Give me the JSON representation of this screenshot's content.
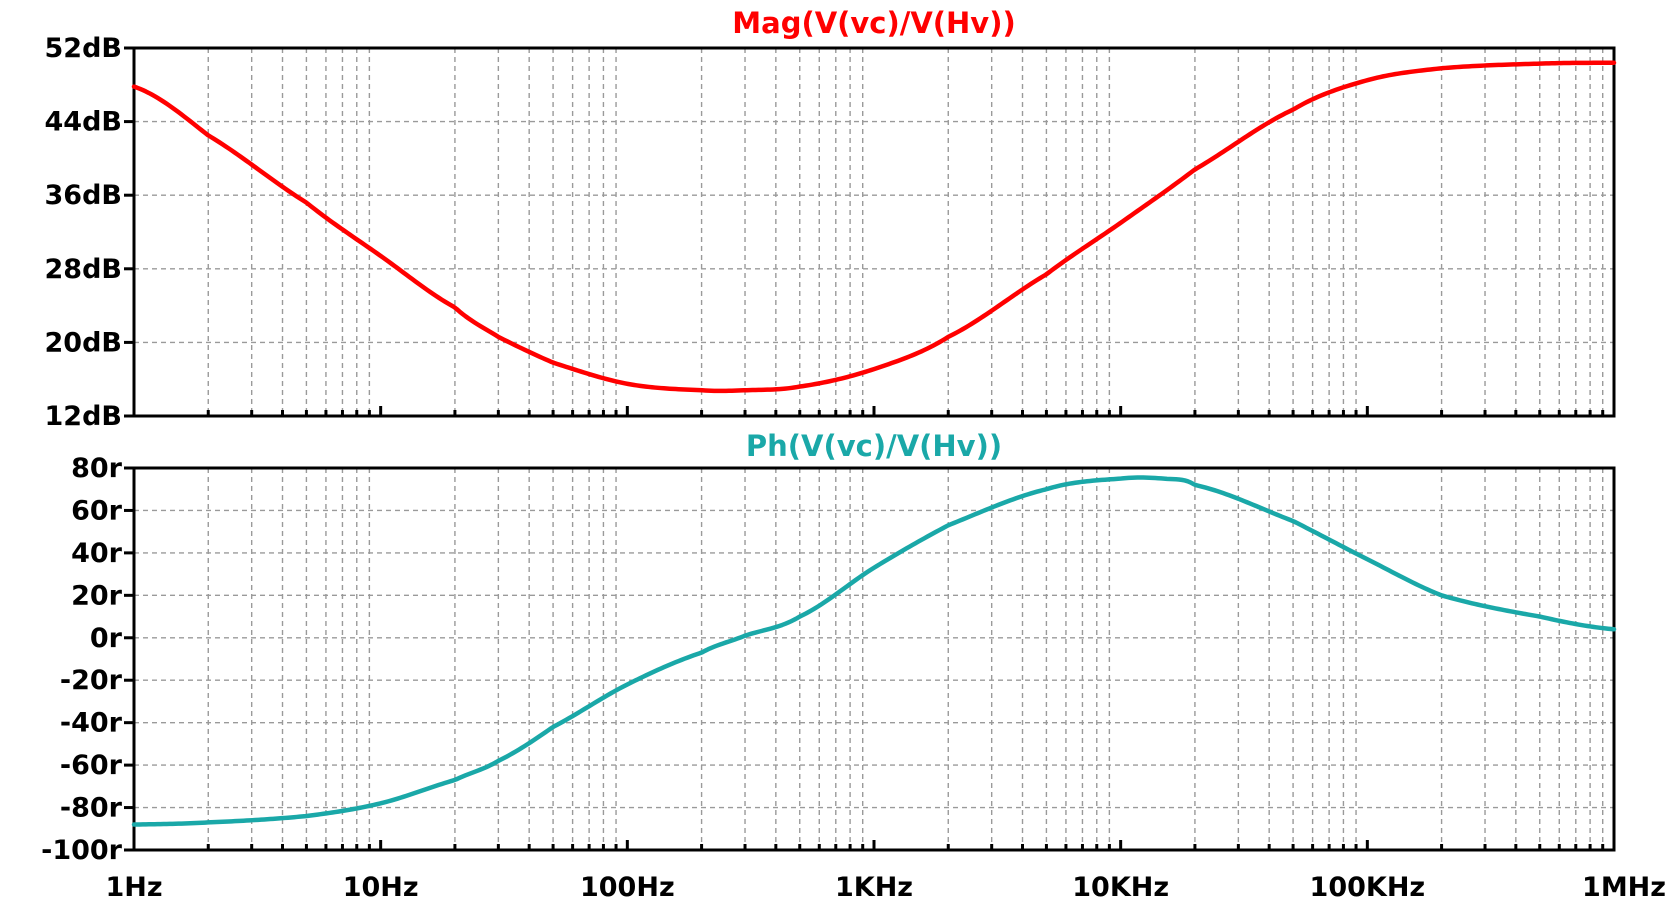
{
  "chart_data": [
    {
      "type": "line",
      "title": "Mag(V(vc)/V(Hv))",
      "color": "#ff0000",
      "x_scale": "log",
      "xlim_hz": [
        1,
        1000000
      ],
      "ylim": [
        12,
        52
      ],
      "yticks": [
        12,
        20,
        28,
        36,
        44,
        52
      ],
      "ytick_labels": [
        "12dB",
        "20dB",
        "28dB",
        "36dB",
        "44dB",
        "52dB"
      ],
      "grid": true,
      "series": [
        {
          "x_hz": [
            1,
            2,
            5,
            10,
            20,
            30,
            50,
            100,
            200,
            300,
            500,
            1000,
            2000,
            5000,
            10000,
            20000,
            50000,
            100000,
            200000,
            500000,
            1000000
          ],
          "y_db": [
            47.8,
            42.5,
            35.2,
            29.4,
            23.8,
            20.6,
            17.8,
            15.5,
            14.8,
            14.8,
            15.2,
            17.1,
            20.6,
            27.4,
            33.0,
            38.8,
            45.3,
            48.5,
            49.8,
            50.3,
            50.4
          ]
        }
      ]
    },
    {
      "type": "line",
      "title": "Ph(V(vc)/V(Hv))",
      "color": "#1aa8a8",
      "x_scale": "log",
      "xlim_hz": [
        1,
        1000000
      ],
      "ylim": [
        -100,
        80
      ],
      "yticks": [
        80,
        60,
        40,
        20,
        0,
        -20,
        -40,
        -60,
        -80,
        -100
      ],
      "ytick_labels": [
        "80r",
        "60r",
        "40r",
        "20r",
        "0r",
        "-20r",
        "-40r",
        "-60r",
        "-80r",
        "-100r"
      ],
      "grid": true,
      "series": [
        {
          "x_hz": [
            1,
            2,
            5,
            10,
            20,
            30,
            50,
            100,
            200,
            300,
            500,
            1000,
            2000,
            5000,
            10000,
            15000,
            20000,
            50000,
            100000,
            200000,
            500000,
            1000000
          ],
          "y": [
            -88,
            -87,
            -84,
            -78,
            -67,
            -58,
            -42,
            -22,
            -7,
            1,
            10,
            33,
            53,
            70,
            75,
            75,
            72,
            55,
            37,
            20,
            10,
            4
          ]
        }
      ]
    }
  ],
  "x_axis": {
    "tick_labels": [
      "1Hz",
      "10Hz",
      "100Hz",
      "1KHz",
      "10KHz",
      "100KHz",
      "1MHz"
    ]
  }
}
